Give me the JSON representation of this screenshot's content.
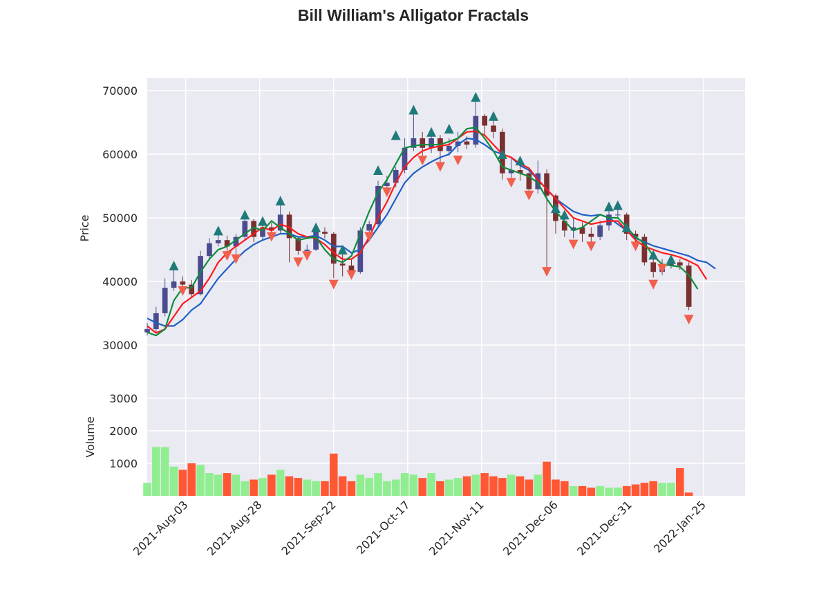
{
  "chart_data": {
    "type": "candlestick",
    "title": "Bill William's Alligator Fractals",
    "ylabel": "Price",
    "volume_label": "Volume",
    "background": "#eaeaf2",
    "grid": true,
    "xlim": [
      "2021-07-21",
      "2022-02-08"
    ],
    "xticks": [
      {
        "value": "2021-08-03",
        "label": "2021-Aug-03"
      },
      {
        "value": "2021-08-28",
        "label": "2021-Aug-28"
      },
      {
        "value": "2021-09-22",
        "label": "2021-Sep-22"
      },
      {
        "value": "2021-10-17",
        "label": "2021-Oct-17"
      },
      {
        "value": "2021-11-11",
        "label": "2021-Nov-11"
      },
      {
        "value": "2021-12-06",
        "label": "2021-Dec-06"
      },
      {
        "value": "2021-12-31",
        "label": "2021-Dec-31"
      },
      {
        "value": "2022-01-25",
        "label": "2022-Jan-25"
      }
    ],
    "ylim": [
      25000,
      71950
    ],
    "yticks": [
      30000,
      40000,
      50000,
      60000,
      70000
    ],
    "volume_ylim": [
      0,
      3660
    ],
    "volume_yticks": [
      1000,
      2000,
      3000
    ],
    "up_color": "#4b4b8f",
    "down_color": "#7a3030",
    "volume_up_color": "#90ee90",
    "volume_down_color": "#ff5733",
    "candles": {
      "x": [
        "2021-07-21",
        "2021-07-24",
        "2021-07-27",
        "2021-07-30",
        "2021-08-02",
        "2021-08-05",
        "2021-08-08",
        "2021-08-11",
        "2021-08-14",
        "2021-08-17",
        "2021-08-20",
        "2021-08-23",
        "2021-08-26",
        "2021-08-29",
        "2021-09-01",
        "2021-09-04",
        "2021-09-07",
        "2021-09-10",
        "2021-09-13",
        "2021-09-16",
        "2021-09-19",
        "2021-09-22",
        "2021-09-25",
        "2021-09-28",
        "2021-10-01",
        "2021-10-04",
        "2021-10-07",
        "2021-10-10",
        "2021-10-13",
        "2021-10-16",
        "2021-10-19",
        "2021-10-22",
        "2021-10-25",
        "2021-10-28",
        "2021-10-31",
        "2021-11-03",
        "2021-11-06",
        "2021-11-09",
        "2021-11-12",
        "2021-11-15",
        "2021-11-18",
        "2021-11-21",
        "2021-11-24",
        "2021-11-27",
        "2021-11-30",
        "2021-12-03",
        "2021-12-06",
        "2021-12-09",
        "2021-12-12",
        "2021-12-15",
        "2021-12-18",
        "2021-12-21",
        "2021-12-24",
        "2021-12-27",
        "2021-12-30",
        "2022-01-02",
        "2022-01-05",
        "2022-01-08",
        "2022-01-11",
        "2022-01-14",
        "2022-01-17",
        "2022-01-20"
      ],
      "open": [
        32000,
        32500,
        35000,
        39000,
        40000,
        39500,
        38000,
        44000,
        46000,
        46500,
        45500,
        47000,
        49500,
        47000,
        48500,
        48000,
        50500,
        46800,
        44800,
        45000,
        47800,
        47500,
        42800,
        42500,
        41500,
        48000,
        49000,
        55000,
        55500,
        57500,
        61000,
        62500,
        61000,
        62500,
        60500,
        61300,
        62000,
        61500,
        66000,
        64500,
        63500,
        57000,
        57500,
        57000,
        54500,
        57000,
        53500,
        49500,
        48000,
        48500,
        47500,
        47000,
        48800,
        50500,
        50500,
        47500,
        47000,
        43000,
        41500,
        42500,
        43000,
        42500
      ],
      "high": [
        33500,
        36000,
        40500,
        41800,
        40800,
        40200,
        44800,
        46800,
        47800,
        47200,
        47500,
        50200,
        49800,
        49500,
        49200,
        52700,
        51000,
        47000,
        45800,
        48200,
        48500,
        47800,
        44800,
        43500,
        48500,
        49500,
        55800,
        56600,
        58000,
        62500,
        66500,
        63500,
        63400,
        63000,
        62500,
        63500,
        62800,
        68700,
        66300,
        65800,
        64000,
        59300,
        58800,
        57800,
        59000,
        57600,
        53800,
        50500,
        50000,
        49300,
        48500,
        49500,
        51800,
        51800,
        50800,
        48000,
        47500,
        43800,
        43500,
        44200,
        43500,
        43000
      ],
      "low": [
        31500,
        32000,
        34500,
        38500,
        38800,
        37500,
        37800,
        43500,
        45500,
        44500,
        44000,
        46500,
        46200,
        46500,
        46800,
        47500,
        43000,
        44200,
        44000,
        44800,
        46800,
        40500,
        40800,
        40800,
        41200,
        47200,
        48500,
        54000,
        54800,
        57000,
        60500,
        59500,
        60200,
        58000,
        59800,
        60300,
        60800,
        61000,
        63000,
        62500,
        56000,
        55500,
        55800,
        53500,
        53800,
        42000,
        47500,
        47000,
        46800,
        46200,
        45800,
        46500,
        48000,
        49800,
        46500,
        45900,
        42500,
        40600,
        41000,
        42000,
        41800,
        35500
      ],
      "close": [
        32500,
        35000,
        39000,
        40000,
        39500,
        38000,
        44000,
        46000,
        46500,
        45500,
        47000,
        49500,
        47000,
        48500,
        48000,
        50500,
        46800,
        44800,
        45000,
        47800,
        47500,
        42800,
        42500,
        41500,
        48000,
        49000,
        55000,
        55500,
        57500,
        61000,
        62500,
        61000,
        62500,
        60500,
        61300,
        62000,
        61500,
        66000,
        64500,
        63500,
        57000,
        57500,
        57000,
        54500,
        57000,
        53500,
        49500,
        48000,
        48500,
        47500,
        47000,
        48800,
        50500,
        50500,
        47500,
        47000,
        43000,
        41500,
        42500,
        43000,
        42500,
        36000
      ],
      "volume": [
        400,
        1500,
        1500,
        900,
        800,
        1000,
        950,
        700,
        650,
        700,
        650,
        450,
        500,
        550,
        650,
        800,
        600,
        550,
        500,
        450,
        450,
        1300,
        600,
        450,
        650,
        550,
        700,
        450,
        500,
        700,
        650,
        550,
        700,
        450,
        500,
        550,
        600,
        650,
        700,
        600,
        550,
        650,
        600,
        500,
        650,
        1050,
        500,
        450,
        300,
        300,
        250,
        300,
        250,
        250,
        300,
        350,
        400,
        450,
        400,
        400,
        850,
        100
      ]
    },
    "alligator": {
      "x": [
        "2021-07-21",
        "2021-07-24",
        "2021-07-27",
        "2021-07-30",
        "2021-08-02",
        "2021-08-05",
        "2021-08-08",
        "2021-08-11",
        "2021-08-14",
        "2021-08-17",
        "2021-08-20",
        "2021-08-23",
        "2021-08-26",
        "2021-08-29",
        "2021-09-01",
        "2021-09-04",
        "2021-09-07",
        "2021-09-10",
        "2021-09-13",
        "2021-09-16",
        "2021-09-19",
        "2021-09-22",
        "2021-09-25",
        "2021-09-28",
        "2021-10-01",
        "2021-10-04",
        "2021-10-07",
        "2021-10-10",
        "2021-10-13",
        "2021-10-16",
        "2021-10-19",
        "2021-10-22",
        "2021-10-25",
        "2021-10-28",
        "2021-10-31",
        "2021-11-03",
        "2021-11-06",
        "2021-11-09",
        "2021-11-12",
        "2021-11-15",
        "2021-11-18",
        "2021-11-21",
        "2021-11-24",
        "2021-11-27",
        "2021-11-30",
        "2021-12-03",
        "2021-12-06",
        "2021-12-09",
        "2021-12-12",
        "2021-12-15",
        "2021-12-18",
        "2021-12-21",
        "2021-12-24",
        "2021-12-27",
        "2021-12-30",
        "2022-01-02",
        "2022-01-05",
        "2022-01-08",
        "2022-01-11",
        "2022-01-14",
        "2022-01-17",
        "2022-01-20",
        "2022-01-23",
        "2022-01-26",
        "2022-01-29"
      ],
      "series": [
        {
          "color": "#1f5fc4",
          "values": [
            34200,
            33500,
            33000,
            33000,
            34000,
            35500,
            36500,
            38500,
            40500,
            42000,
            43500,
            44800,
            45800,
            46500,
            47000,
            47500,
            47500,
            47000,
            47000,
            47200,
            46500,
            45500,
            45500,
            44500,
            45000,
            46500,
            48500,
            50500,
            53000,
            55500,
            57000,
            58000,
            58800,
            59500,
            60000,
            61500,
            62500,
            62300,
            61500,
            60500,
            60000,
            59500,
            58200,
            57500,
            56000,
            54500,
            53000,
            52000,
            51000,
            50500,
            50300,
            50500,
            50000,
            49000,
            48000,
            46800,
            46200,
            45600,
            45200,
            44800,
            44400,
            44000,
            43300,
            43000,
            42000
          ]
        },
        {
          "color": "#ff1a1a",
          "values": [
            33000,
            31900,
            32500,
            34500,
            36500,
            37500,
            38500,
            40500,
            43000,
            44500,
            45500,
            46500,
            47500,
            48500,
            48000,
            49000,
            48500,
            47500,
            47000,
            46800,
            45800,
            44500,
            43500,
            43500,
            44500,
            47000,
            50000,
            52500,
            55500,
            58000,
            59500,
            60500,
            61000,
            61300,
            61500,
            62500,
            63500,
            63600,
            63000,
            61500,
            60000,
            59500,
            58500,
            57800,
            56000,
            54500,
            53000,
            51500,
            50000,
            49500,
            49000,
            49300,
            49500,
            49500,
            48000,
            46500,
            45500,
            45000,
            44500,
            44200,
            43800,
            43200,
            42500,
            40300,
            null
          ]
        },
        {
          "color": "#0f8c3c",
          "values": [
            32000,
            31500,
            32500,
            37000,
            39000,
            39000,
            41500,
            43500,
            45000,
            45500,
            46500,
            47500,
            48500,
            48000,
            49500,
            48500,
            47500,
            46500,
            46800,
            47000,
            45000,
            43500,
            43000,
            44000,
            47500,
            51000,
            54000,
            56000,
            58500,
            61000,
            61300,
            61500,
            61500,
            61500,
            62000,
            62500,
            64000,
            64200,
            62500,
            60500,
            58000,
            57500,
            57000,
            56500,
            55500,
            53000,
            51000,
            49500,
            48000,
            48500,
            49500,
            50500,
            50000,
            50000,
            48500,
            47000,
            46000,
            44000,
            42700,
            42500,
            42300,
            41000,
            38800,
            null,
            null
          ]
        }
      ]
    },
    "fractals_up": {
      "color": "#1f7a7a",
      "x": [
        "2021-07-30",
        "2021-08-14",
        "2021-08-23",
        "2021-08-29",
        "2021-09-04",
        "2021-09-16",
        "2021-09-25",
        "2021-10-07",
        "2021-10-13",
        "2021-10-19",
        "2021-10-25",
        "2021-10-31",
        "2021-11-09",
        "2021-11-15",
        "2021-11-18",
        "2021-11-24",
        "2021-12-06",
        "2021-12-09",
        "2021-12-24",
        "2021-12-27",
        "2021-12-30",
        "2022-01-08",
        "2022-01-14"
      ],
      "values": [
        42500,
        48000,
        50500,
        49500,
        52700,
        48500,
        45000,
        57500,
        63000,
        67000,
        63500,
        64000,
        69000,
        66000,
        60000,
        59000,
        51500,
        50500,
        51800,
        52000,
        48500,
        44200,
        43500
      ]
    },
    "fractals_down": {
      "color": "#f0604d",
      "x": [
        "2021-08-02",
        "2021-08-17",
        "2021-08-20",
        "2021-09-01",
        "2021-09-10",
        "2021-09-13",
        "2021-09-22",
        "2021-09-28",
        "2021-10-04",
        "2021-10-10",
        "2021-10-22",
        "2021-10-28",
        "2021-11-03",
        "2021-11-21",
        "2021-11-27",
        "2021-12-03",
        "2021-12-12",
        "2021-12-18",
        "2022-01-02",
        "2022-01-08",
        "2022-01-11",
        "2022-01-20"
      ],
      "values": [
        38500,
        44000,
        43500,
        47000,
        43000,
        44000,
        39500,
        41000,
        47000,
        54000,
        59000,
        58000,
        59000,
        55500,
        53500,
        41500,
        45800,
        45500,
        45500,
        39500,
        42000,
        34000
      ]
    }
  }
}
